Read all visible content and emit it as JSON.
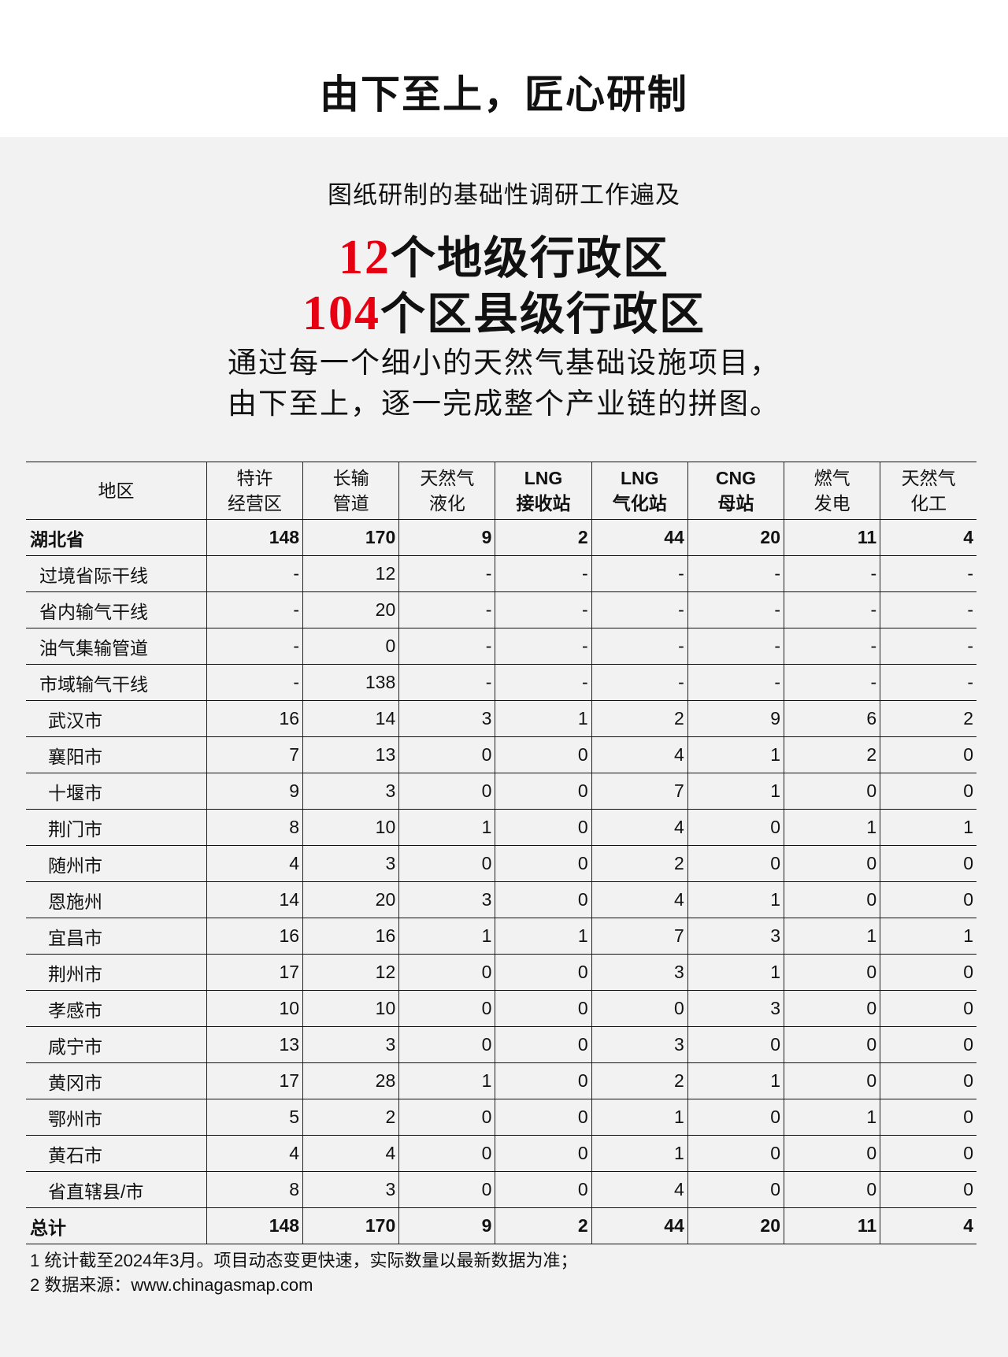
{
  "title": "由下至上，匠心研制",
  "intro": "图纸研制的基础性调研工作遍及",
  "stat1": {
    "num": "12",
    "text": "个地级行政区"
  },
  "stat2": {
    "num": "104",
    "text": "个区县级行政区"
  },
  "para": [
    "通过每一个细小的天然气基础设施项目，",
    "由下至上，逐一完成整个产业链的拼图。"
  ],
  "table": {
    "headers": [
      [
        "地区"
      ],
      [
        "特许",
        "经营区"
      ],
      [
        "长输",
        "管道"
      ],
      [
        "天然气",
        "液化"
      ],
      [
        "LNG",
        "接收站"
      ],
      [
        "LNG",
        "气化站"
      ],
      [
        "CNG",
        "母站"
      ],
      [
        "燃气",
        "发电"
      ],
      [
        "天然气",
        "化工"
      ]
    ],
    "rows": [
      {
        "level": 0,
        "bold": true,
        "cells": [
          "湖北省",
          "148",
          "170",
          "9",
          "2",
          "44",
          "20",
          "11",
          "4"
        ]
      },
      {
        "level": 1,
        "cells": [
          "过境省际干线",
          "-",
          "12",
          "-",
          "-",
          "-",
          "-",
          "-",
          "-"
        ]
      },
      {
        "level": 1,
        "cells": [
          "省内输气干线",
          "-",
          "20",
          "-",
          "-",
          "-",
          "-",
          "-",
          "-"
        ]
      },
      {
        "level": 1,
        "cells": [
          "油气集输管道",
          "-",
          "0",
          "-",
          "-",
          "-",
          "-",
          "-",
          "-"
        ]
      },
      {
        "level": 1,
        "cells": [
          "市域输气干线",
          "-",
          "138",
          "-",
          "-",
          "-",
          "-",
          "-",
          "-"
        ]
      },
      {
        "level": 2,
        "cells": [
          "武汉市",
          "16",
          "14",
          "3",
          "1",
          "2",
          "9",
          "6",
          "2"
        ]
      },
      {
        "level": 2,
        "cells": [
          "襄阳市",
          "7",
          "13",
          "0",
          "0",
          "4",
          "1",
          "2",
          "0"
        ]
      },
      {
        "level": 2,
        "cells": [
          "十堰市",
          "9",
          "3",
          "0",
          "0",
          "7",
          "1",
          "0",
          "0"
        ]
      },
      {
        "level": 2,
        "cells": [
          "荆门市",
          "8",
          "10",
          "1",
          "0",
          "4",
          "0",
          "1",
          "1"
        ]
      },
      {
        "level": 2,
        "cells": [
          "随州市",
          "4",
          "3",
          "0",
          "0",
          "2",
          "0",
          "0",
          "0"
        ]
      },
      {
        "level": 2,
        "cells": [
          "恩施州",
          "14",
          "20",
          "3",
          "0",
          "4",
          "1",
          "0",
          "0"
        ]
      },
      {
        "level": 2,
        "cells": [
          "宜昌市",
          "16",
          "16",
          "1",
          "1",
          "7",
          "3",
          "1",
          "1"
        ]
      },
      {
        "level": 2,
        "cells": [
          "荆州市",
          "17",
          "12",
          "0",
          "0",
          "3",
          "1",
          "0",
          "0"
        ]
      },
      {
        "level": 2,
        "cells": [
          "孝感市",
          "10",
          "10",
          "0",
          "0",
          "0",
          "3",
          "0",
          "0"
        ]
      },
      {
        "level": 2,
        "cells": [
          "咸宁市",
          "13",
          "3",
          "0",
          "0",
          "3",
          "0",
          "0",
          "0"
        ]
      },
      {
        "level": 2,
        "cells": [
          "黄冈市",
          "17",
          "28",
          "1",
          "0",
          "2",
          "1",
          "0",
          "0"
        ]
      },
      {
        "level": 2,
        "cells": [
          "鄂州市",
          "5",
          "2",
          "0",
          "0",
          "1",
          "0",
          "1",
          "0"
        ]
      },
      {
        "level": 2,
        "cells": [
          "黄石市",
          "4",
          "4",
          "0",
          "0",
          "1",
          "0",
          "0",
          "0"
        ]
      },
      {
        "level": 2,
        "cells": [
          "省直辖县/市",
          "8",
          "3",
          "0",
          "0",
          "4",
          "0",
          "0",
          "0"
        ]
      },
      {
        "level": 0,
        "bold": true,
        "cells": [
          "总计",
          "148",
          "170",
          "9",
          "2",
          "44",
          "20",
          "11",
          "4"
        ]
      }
    ]
  },
  "footnotes": [
    "1 统计截至2024年3月。项目动态变更快速，实际数量以最新数据为准；",
    "2 数据来源：www.chinagasmap.com"
  ],
  "colors": {
    "accent": "#e60012",
    "background": "#f2f2f2"
  }
}
